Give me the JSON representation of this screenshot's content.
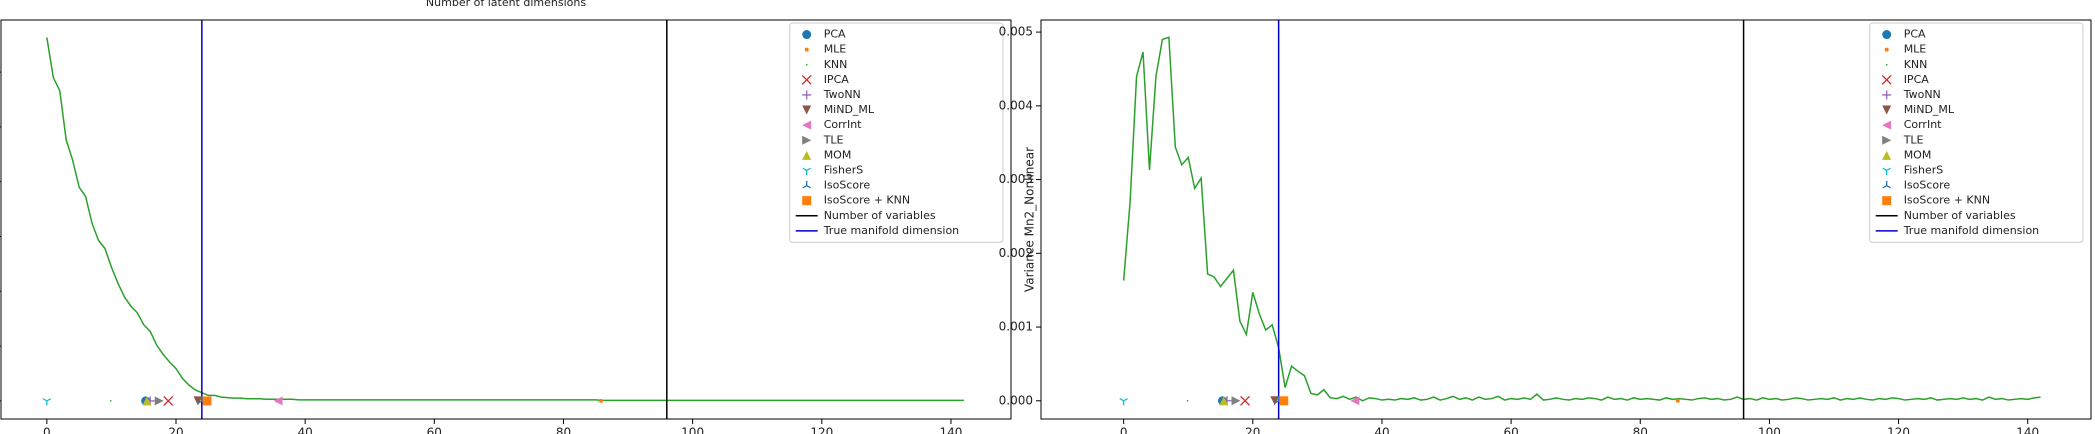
{
  "chart_data": [
    {
      "type": "line",
      "title": "Number of latent dimensions",
      "xlim": [
        -7.1,
        149.3
      ],
      "ylim": [
        -0.33,
        6.95
      ],
      "xticks": [
        0,
        20,
        40,
        60,
        80,
        100,
        120,
        140
      ],
      "yticks": [
        0,
        1,
        2,
        3,
        4,
        5,
        6
      ],
      "ytick_labels": false,
      "legend": "upper right",
      "series": [
        {
          "color": "#2ca02c",
          "x": [
            0,
            1,
            2,
            3,
            4,
            5,
            6,
            7,
            8,
            9,
            10,
            11,
            12,
            13,
            14,
            15,
            16,
            17,
            18,
            19,
            20,
            21,
            22,
            23,
            24,
            25,
            26,
            27,
            28,
            29,
            30,
            31,
            32,
            33,
            34,
            35,
            36,
            37,
            38,
            39,
            40,
            41,
            42,
            43,
            44,
            45,
            46,
            47,
            48,
            49,
            50,
            51,
            52,
            53,
            54,
            55,
            56,
            57,
            58,
            59,
            60,
            61,
            62,
            63,
            64,
            65,
            66,
            67,
            68,
            69,
            70,
            71,
            72,
            73,
            74,
            75,
            76,
            77,
            78,
            79,
            80,
            81,
            82,
            83,
            84,
            85,
            86,
            87,
            88,
            89,
            90,
            91,
            92,
            93,
            94,
            95,
            96,
            97,
            98,
            99,
            100,
            101,
            102,
            103,
            104,
            105,
            106,
            107,
            108,
            109,
            110,
            111,
            112,
            113,
            114,
            115,
            116,
            117,
            118,
            119,
            120,
            121,
            122,
            123,
            124,
            125,
            126,
            127,
            128,
            129,
            130,
            131,
            132,
            133,
            134,
            135,
            136,
            137,
            138,
            139,
            140,
            141,
            142
          ],
          "values": [
            6.63,
            5.9,
            5.66,
            4.76,
            4.39,
            3.9,
            3.73,
            3.24,
            2.93,
            2.78,
            2.44,
            2.15,
            1.9,
            1.73,
            1.61,
            1.39,
            1.27,
            1.02,
            0.85,
            0.71,
            0.59,
            0.41,
            0.29,
            0.2,
            0.15,
            0.1,
            0.1,
            0.07,
            0.06,
            0.05,
            0.05,
            0.04,
            0.04,
            0.04,
            0.03,
            0.03,
            0.03,
            0.03,
            0.03,
            0.02,
            0.02,
            0.02,
            0.02,
            0.02,
            0.02,
            0.02,
            0.02,
            0.02,
            0.02,
            0.02,
            0.02,
            0.02,
            0.02,
            0.02,
            0.02,
            0.02,
            0.02,
            0.02,
            0.02,
            0.02,
            0.02,
            0.02,
            0.02,
            0.02,
            0.02,
            0.02,
            0.02,
            0.02,
            0.02,
            0.02,
            0.02,
            0.02,
            0.02,
            0.02,
            0.02,
            0.02,
            0.02,
            0.02,
            0.02,
            0.02,
            0.02,
            0.02,
            0.02,
            0.02,
            0.02,
            0.02,
            0.01,
            0.01,
            0.01,
            0.01,
            0.01,
            0.01,
            0.01,
            0.01,
            0.01,
            0.01,
            0.01,
            0.01,
            0.01,
            0.01,
            0.01,
            0.01,
            0.01,
            0.01,
            0.01,
            0.01,
            0.01,
            0.01,
            0.01,
            0.01,
            0.01,
            0.01,
            0.01,
            0.01,
            0.01,
            0.01,
            0.01,
            0.01,
            0.01,
            0.01,
            0.01,
            0.01,
            0.01,
            0.01,
            0.01,
            0.01,
            0.01,
            0.01,
            0.01,
            0.01,
            0.01,
            0.01,
            0.01,
            0.01,
            0.01,
            0.01,
            0.01,
            0.01,
            0.01,
            0.01,
            0.01,
            0.01,
            0.01
          ]
        }
      ],
      "markers": [
        {
          "name": "PCA",
          "color": "#1f77b4",
          "marker": "o",
          "x": [
            15.3
          ],
          "values": [
            0
          ]
        },
        {
          "name": "MLE",
          "color": "#ff7f0e",
          "marker": ".",
          "x": [
            85.8
          ],
          "values": [
            0
          ]
        },
        {
          "name": "KNN",
          "color": "#2ca02c",
          "marker": ",",
          "x": [
            9.9
          ],
          "values": [
            0
          ]
        },
        {
          "name": "IPCA",
          "color": "#d62728",
          "marker": "x",
          "x": [
            18.8
          ],
          "values": [
            0
          ]
        },
        {
          "name": "TwoNN",
          "color": "#9467bd",
          "marker": "+",
          "x": [
            16
          ],
          "values": [
            0
          ]
        },
        {
          "name": "MiND_ML",
          "color": "#8c564b",
          "marker": "v",
          "x": [
            23.4
          ],
          "values": [
            0
          ]
        },
        {
          "name": "CorrInt",
          "color": "#e377c2",
          "marker": "<",
          "x": [
            35.8
          ],
          "values": [
            0
          ]
        },
        {
          "name": "TLE",
          "color": "#7f7f7f",
          "marker": ">",
          "x": [
            17.4
          ],
          "values": [
            0
          ]
        },
        {
          "name": "MOM",
          "color": "#bcbd22",
          "marker": "^",
          "x": [
            15.5
          ],
          "values": [
            0
          ]
        },
        {
          "name": "FisherS",
          "color": "#17becf",
          "marker": "1",
          "x": [
            0
          ],
          "values": [
            0
          ]
        },
        {
          "name": "IsoScore",
          "color": "#1f77b4",
          "marker": "2",
          "x": [
            24
          ],
          "values": [
            0
          ]
        },
        {
          "name": "IsoScore + KNN",
          "color": "#ff7f0e",
          "marker": "s",
          "x": [
            24.8
          ],
          "values": [
            0
          ]
        }
      ],
      "vlines": [
        {
          "label": "Number of variables",
          "color": "#000000",
          "x": 96
        },
        {
          "label": "True manifold dimension",
          "color": "#0000cc",
          "x": 24
        }
      ]
    },
    {
      "type": "line",
      "y_label": "Variance Mn2_Nonlinear",
      "xlim": [
        -12.8,
        149.8
      ],
      "ylim": [
        -0.000247,
        0.005164
      ],
      "xticks": [
        0,
        20,
        40,
        60,
        80,
        100,
        120,
        140
      ],
      "yticks": [
        {
          "value": 0,
          "label": "0.000"
        },
        {
          "value": 0.001,
          "label": "0.001"
        },
        {
          "value": 0.002,
          "label": "0.002"
        },
        {
          "value": 0.003,
          "label": "0.003"
        },
        {
          "value": 0.004,
          "label": "0.004"
        },
        {
          "value": 0.005,
          "label": "0.005"
        }
      ],
      "ytick_labels": true,
      "legend": "upper right",
      "series": [
        {
          "color": "#2ca02c",
          "x": [
            0,
            1,
            2,
            3,
            4,
            5,
            6,
            7,
            8,
            9,
            10,
            11,
            12,
            13,
            14,
            15,
            16,
            17,
            18,
            19,
            20,
            21,
            22,
            23,
            24,
            25,
            26,
            27,
            28,
            29,
            30,
            31,
            32,
            33,
            34,
            35,
            36,
            37,
            38,
            39,
            40,
            41,
            42,
            43,
            44,
            45,
            46,
            47,
            48,
            49,
            50,
            51,
            52,
            53,
            54,
            55,
            56,
            57,
            58,
            59,
            60,
            61,
            62,
            63,
            64,
            65,
            66,
            67,
            68,
            69,
            70,
            71,
            72,
            73,
            74,
            75,
            76,
            77,
            78,
            79,
            80,
            81,
            82,
            83,
            84,
            85,
            86,
            87,
            88,
            89,
            90,
            91,
            92,
            93,
            94,
            95,
            96,
            97,
            98,
            99,
            100,
            101,
            102,
            103,
            104,
            105,
            106,
            107,
            108,
            109,
            110,
            111,
            112,
            113,
            114,
            115,
            116,
            117,
            118,
            119,
            120,
            121,
            122,
            123,
            124,
            125,
            126,
            127,
            128,
            129,
            130,
            131,
            132,
            133,
            134,
            135,
            136,
            137,
            138,
            139,
            140,
            141,
            142
          ],
          "values": [
            0.00163,
            0.0027,
            0.0044,
            0.00473,
            0.00313,
            0.0044,
            0.0049,
            0.00493,
            0.00344,
            0.0032,
            0.0033,
            0.00288,
            0.00302,
            0.00172,
            0.00168,
            0.00155,
            0.00166,
            0.00177,
            0.00108,
            0.0009,
            0.00147,
            0.00118,
            0.00096,
            0.00103,
            0.00072,
            0.00018,
            0.00047,
            0.0004,
            0.00034,
            0.0001,
            8e-05,
            0.00015,
            4e-05,
            3e-05,
            6e-05,
            2e-05,
            5e-05,
            0.0,
            4e-05,
            3e-05,
            1e-05,
            2e-05,
            1e-05,
            3e-05,
            2e-05,
            4e-05,
            1e-05,
            2e-05,
            5e-05,
            1e-05,
            3e-05,
            6e-05,
            2e-05,
            4e-05,
            1e-05,
            5e-05,
            2e-05,
            3e-05,
            6e-05,
            1e-05,
            3e-05,
            2e-05,
            4e-05,
            2e-05,
            9e-05,
            1e-05,
            2e-05,
            4e-05,
            2e-05,
            1e-05,
            3e-05,
            2e-05,
            4e-05,
            3e-05,
            1e-05,
            5e-05,
            2e-05,
            3e-05,
            1e-05,
            4e-05,
            2e-05,
            3e-05,
            2e-05,
            1e-05,
            4e-05,
            2e-05,
            3e-05,
            2e-05,
            1e-05,
            3e-05,
            4e-05,
            2e-05,
            3e-05,
            1e-05,
            2e-05,
            5e-05,
            2e-05,
            3e-05,
            1e-05,
            4e-05,
            2e-05,
            3e-05,
            1e-05,
            2e-05,
            4e-05,
            3e-05,
            1e-05,
            2e-05,
            3e-05,
            2e-05,
            4e-05,
            1e-05,
            3e-05,
            2e-05,
            4e-05,
            2e-05,
            1e-05,
            3e-05,
            2e-05,
            4e-05,
            3e-05,
            1e-05,
            2e-05,
            3e-05,
            2e-05,
            4e-05,
            1e-05,
            2e-05,
            3e-05,
            2e-05,
            4e-05,
            2e-05,
            3e-05,
            1e-05,
            5e-05,
            2e-05,
            3e-05,
            1e-05,
            2e-05,
            3e-05,
            2e-05,
            4e-05,
            5e-05
          ]
        }
      ],
      "markers": [
        {
          "name": "PCA",
          "color": "#1f77b4",
          "marker": "o",
          "x": [
            15.3
          ],
          "values": [
            0
          ]
        },
        {
          "name": "MLE",
          "color": "#ff7f0e",
          "marker": ".",
          "x": [
            85.8
          ],
          "values": [
            0
          ]
        },
        {
          "name": "KNN",
          "color": "#2ca02c",
          "marker": ",",
          "x": [
            9.9
          ],
          "values": [
            0
          ]
        },
        {
          "name": "IPCA",
          "color": "#d62728",
          "marker": "x",
          "x": [
            18.8
          ],
          "values": [
            0
          ]
        },
        {
          "name": "TwoNN",
          "color": "#9467bd",
          "marker": "+",
          "x": [
            16
          ],
          "values": [
            0
          ]
        },
        {
          "name": "MiND_ML",
          "color": "#8c564b",
          "marker": "v",
          "x": [
            23.4
          ],
          "values": [
            0
          ]
        },
        {
          "name": "CorrInt",
          "color": "#e377c2",
          "marker": "<",
          "x": [
            35.8
          ],
          "values": [
            0
          ]
        },
        {
          "name": "TLE",
          "color": "#7f7f7f",
          "marker": ">",
          "x": [
            17.4
          ],
          "values": [
            0
          ]
        },
        {
          "name": "MOM",
          "color": "#bcbd22",
          "marker": "^",
          "x": [
            15.5
          ],
          "values": [
            0
          ]
        },
        {
          "name": "FisherS",
          "color": "#17becf",
          "marker": "1",
          "x": [
            0
          ],
          "values": [
            0
          ]
        },
        {
          "name": "IsoScore",
          "color": "#1f77b4",
          "marker": "2",
          "x": [
            24
          ],
          "values": [
            0
          ]
        },
        {
          "name": "IsoScore + KNN",
          "color": "#ff7f0e",
          "marker": "s",
          "x": [
            24.8
          ],
          "values": [
            0
          ]
        }
      ],
      "vlines": [
        {
          "label": "Number of variables",
          "color": "#000000",
          "x": 96
        },
        {
          "label": "True manifold dimension",
          "color": "#0000cc",
          "x": 24
        }
      ]
    }
  ]
}
